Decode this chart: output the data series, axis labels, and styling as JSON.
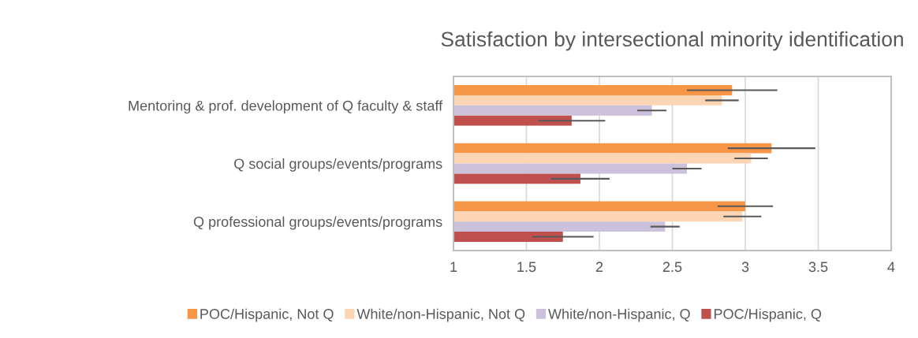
{
  "chart_data": {
    "type": "bar",
    "orientation": "horizontal",
    "title": "Satisfaction by intersectional minority identification",
    "categories": [
      "Mentoring & prof. development of Q faculty & staff",
      "Q social groups/events/programs",
      "Q professional groups/events/programs"
    ],
    "series": [
      {
        "name": "POC/Hispanic, Not Q",
        "color": "#f79646",
        "values": [
          2.91,
          3.18,
          3.0
        ],
        "errors": [
          0.31,
          0.3,
          0.19
        ]
      },
      {
        "name": "White/non-Hispanic, Not Q",
        "color": "#fcd5b5",
        "values": [
          2.84,
          3.04,
          2.98
        ],
        "errors": [
          0.115,
          0.115,
          0.13
        ]
      },
      {
        "name": "White/non-Hispanic, Q",
        "color": "#ccc1da",
        "values": [
          2.36,
          2.6,
          2.45
        ],
        "errors": [
          0.1,
          0.1,
          0.1
        ]
      },
      {
        "name": "POC/Hispanic, Q",
        "color": "#c0504d",
        "values": [
          1.81,
          1.87,
          1.75
        ],
        "errors": [
          0.23,
          0.2,
          0.21
        ]
      }
    ],
    "xlim": [
      1,
      4
    ],
    "xticks": [
      1,
      1.5,
      2,
      2.5,
      3,
      3.5,
      4
    ],
    "grid": "x",
    "legend": "bottom"
  }
}
